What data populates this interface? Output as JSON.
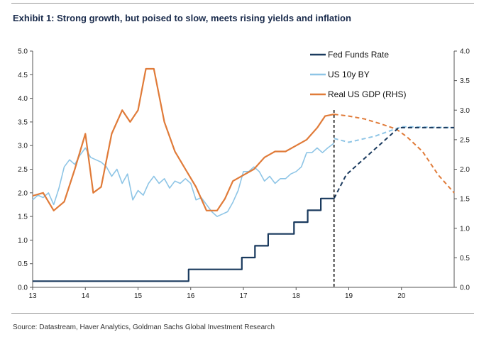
{
  "header": {
    "title": "Exhibit 1: Strong growth, but poised to slow, meets rising yields and inflation"
  },
  "footer": {
    "source": "Source: Datastream, Haver Analytics, Goldman Sachs Global Investment Research"
  },
  "chart_data": {
    "type": "line",
    "title": "Exhibit 1: Strong growth, but poised to slow, meets rising yields and inflation",
    "xlabel": "",
    "ylabel": "",
    "xlim": [
      13,
      21
    ],
    "ylim_left": [
      0,
      5
    ],
    "ylim_right": [
      0,
      4
    ],
    "x_ticks": [
      "13",
      "14",
      "15",
      "16",
      "17",
      "18",
      "19",
      "20"
    ],
    "y_ticks_left": [
      "0.0",
      "0.5",
      "1.0",
      "1.5",
      "2.0",
      "2.5",
      "3.0",
      "3.5",
      "4.0",
      "4.5",
      "5.0"
    ],
    "y_ticks_right": [
      "0.0",
      "0.5",
      "1.0",
      "1.5",
      "2.0",
      "2.5",
      "3.0",
      "3.5",
      "4.0"
    ],
    "forecast_start": 18.72,
    "grid": false,
    "legend_position": "top-right",
    "series": [
      {
        "name": "Fed Funds Rate",
        "axis": "left",
        "color": "#1a3a5e",
        "step": true,
        "x": [
          13,
          15.96,
          15.96,
          16.97,
          16.97,
          17.22,
          17.22,
          17.47,
          17.47,
          17.96,
          17.96,
          18.22,
          18.22,
          18.47,
          18.47,
          18.72
        ],
        "y": [
          0.13,
          0.13,
          0.38,
          0.38,
          0.63,
          0.63,
          0.88,
          0.88,
          1.13,
          1.13,
          1.38,
          1.38,
          1.63,
          1.63,
          1.88,
          1.88
        ],
        "forecast": {
          "x": [
            18.72,
            18.95,
            19.2,
            19.45,
            19.7,
            19.95,
            21
          ],
          "y": [
            1.88,
            2.38,
            2.63,
            2.88,
            3.13,
            3.38,
            3.38
          ]
        }
      },
      {
        "name": "US 10y BY",
        "axis": "left",
        "color": "#8ec5e6",
        "x": [
          13.0,
          13.1,
          13.2,
          13.3,
          13.4,
          13.5,
          13.6,
          13.7,
          13.8,
          13.9,
          14.0,
          14.1,
          14.2,
          14.3,
          14.4,
          14.5,
          14.6,
          14.7,
          14.8,
          14.9,
          15.0,
          15.1,
          15.2,
          15.3,
          15.4,
          15.5,
          15.6,
          15.7,
          15.8,
          15.9,
          16.0,
          16.1,
          16.2,
          16.3,
          16.4,
          16.5,
          16.6,
          16.7,
          16.8,
          16.9,
          17.0,
          17.1,
          17.2,
          17.3,
          17.4,
          17.5,
          17.6,
          17.7,
          17.8,
          17.9,
          18.0,
          18.1,
          18.2,
          18.3,
          18.4,
          18.5,
          18.6,
          18.72
        ],
        "y": [
          1.85,
          1.95,
          1.9,
          2.0,
          1.75,
          2.1,
          2.55,
          2.7,
          2.6,
          2.8,
          2.95,
          2.75,
          2.7,
          2.65,
          2.55,
          2.35,
          2.5,
          2.2,
          2.4,
          1.85,
          2.05,
          1.95,
          2.2,
          2.35,
          2.2,
          2.3,
          2.1,
          2.25,
          2.2,
          2.3,
          2.2,
          1.85,
          1.9,
          1.75,
          1.6,
          1.5,
          1.55,
          1.6,
          1.8,
          2.05,
          2.45,
          2.45,
          2.55,
          2.45,
          2.25,
          2.35,
          2.2,
          2.3,
          2.3,
          2.4,
          2.45,
          2.55,
          2.85,
          2.85,
          2.95,
          2.85,
          2.95,
          3.05
        ],
        "forecast": {
          "x": [
            18.72,
            19.0,
            19.5,
            20.0,
            21
          ],
          "y": [
            3.15,
            3.07,
            3.2,
            3.4,
            3.38
          ]
        }
      },
      {
        "name": "Real US GDP (RHS)",
        "axis": "right",
        "color": "#e07b39",
        "x": [
          13.0,
          13.2,
          13.4,
          13.6,
          13.8,
          14.0,
          14.15,
          14.3,
          14.5,
          14.7,
          14.85,
          15.0,
          15.15,
          15.3,
          15.5,
          15.7,
          15.9,
          16.1,
          16.3,
          16.5,
          16.65,
          16.8,
          17.0,
          17.2,
          17.4,
          17.6,
          17.8,
          18.0,
          18.2,
          18.4,
          18.55,
          18.72
        ],
        "y": [
          1.55,
          1.6,
          1.3,
          1.45,
          2.0,
          2.6,
          1.6,
          1.7,
          2.6,
          3.0,
          2.8,
          3.0,
          3.7,
          3.7,
          2.8,
          2.3,
          2.0,
          1.7,
          1.3,
          1.3,
          1.5,
          1.8,
          1.9,
          2.0,
          2.2,
          2.3,
          2.3,
          2.4,
          2.5,
          2.7,
          2.9,
          2.93
        ],
        "forecast": {
          "x": [
            18.72,
            19.0,
            19.3,
            19.6,
            19.9,
            20.1,
            20.4,
            20.7,
            21
          ],
          "y": [
            2.93,
            2.9,
            2.85,
            2.77,
            2.68,
            2.55,
            2.3,
            1.9,
            1.6
          ]
        }
      }
    ]
  }
}
